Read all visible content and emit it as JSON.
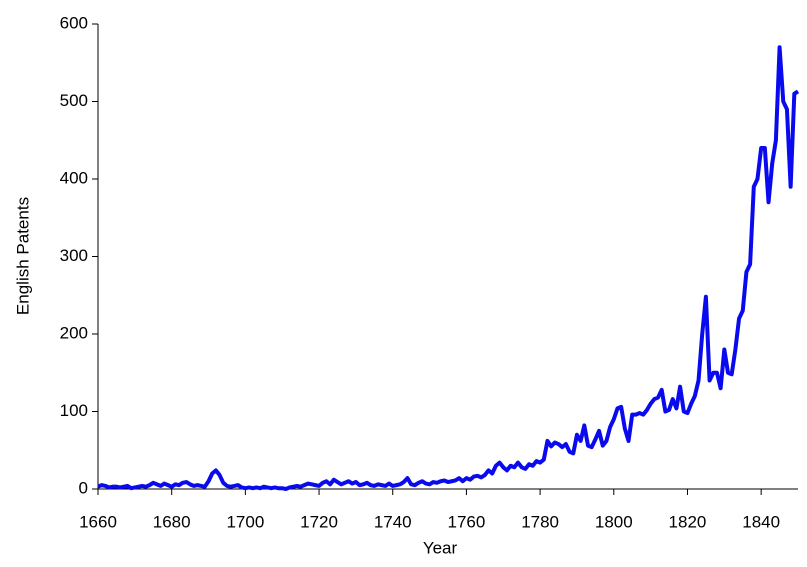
{
  "chart_data": {
    "type": "line",
    "xlabel": "Year",
    "ylabel": "English Patents",
    "x": [
      1660,
      1661,
      1662,
      1663,
      1664,
      1665,
      1666,
      1667,
      1668,
      1669,
      1670,
      1671,
      1672,
      1673,
      1674,
      1675,
      1676,
      1677,
      1678,
      1679,
      1680,
      1681,
      1682,
      1683,
      1684,
      1685,
      1686,
      1687,
      1688,
      1689,
      1690,
      1691,
      1692,
      1693,
      1694,
      1695,
      1696,
      1697,
      1698,
      1699,
      1700,
      1701,
      1702,
      1703,
      1704,
      1705,
      1706,
      1707,
      1708,
      1709,
      1710,
      1711,
      1712,
      1713,
      1714,
      1715,
      1716,
      1717,
      1718,
      1719,
      1720,
      1721,
      1722,
      1723,
      1724,
      1725,
      1726,
      1727,
      1728,
      1729,
      1730,
      1731,
      1732,
      1733,
      1734,
      1735,
      1736,
      1737,
      1738,
      1739,
      1740,
      1741,
      1742,
      1743,
      1744,
      1745,
      1746,
      1747,
      1748,
      1749,
      1750,
      1751,
      1752,
      1753,
      1754,
      1755,
      1756,
      1757,
      1758,
      1759,
      1760,
      1761,
      1762,
      1763,
      1764,
      1765,
      1766,
      1767,
      1768,
      1769,
      1770,
      1771,
      1772,
      1773,
      1774,
      1775,
      1776,
      1777,
      1778,
      1779,
      1780,
      1781,
      1782,
      1783,
      1784,
      1785,
      1786,
      1787,
      1788,
      1789,
      1790,
      1791,
      1792,
      1793,
      1794,
      1795,
      1796,
      1797,
      1798,
      1799,
      1800,
      1801,
      1802,
      1803,
      1804,
      1805,
      1806,
      1807,
      1808,
      1809,
      1810,
      1811,
      1812,
      1813,
      1814,
      1815,
      1816,
      1817,
      1818,
      1819,
      1820,
      1821,
      1822,
      1823,
      1824,
      1825,
      1826,
      1827,
      1828,
      1829,
      1830,
      1831,
      1832,
      1833,
      1834,
      1835,
      1836,
      1837,
      1838,
      1839,
      1840,
      1841,
      1842,
      1843,
      1844,
      1845,
      1846,
      1847,
      1848,
      1849,
      1850
    ],
    "series": [
      {
        "color": "#0a0aee",
        "values": [
          3,
          5,
          4,
          2,
          3,
          3,
          2,
          3,
          4,
          1,
          2,
          3,
          4,
          3,
          5,
          8,
          6,
          4,
          7,
          5,
          3,
          6,
          5,
          8,
          9,
          6,
          4,
          5,
          4,
          3,
          10,
          20,
          24,
          18,
          8,
          4,
          3,
          4,
          5,
          2,
          1,
          2,
          1,
          2,
          1,
          3,
          2,
          1,
          2,
          1,
          1,
          0,
          2,
          3,
          4,
          3,
          5,
          7,
          6,
          5,
          4,
          8,
          10,
          6,
          12,
          9,
          6,
          8,
          10,
          7,
          9,
          5,
          6,
          8,
          5,
          4,
          6,
          5,
          4,
          7,
          4,
          5,
          6,
          9,
          14,
          6,
          5,
          8,
          10,
          7,
          6,
          9,
          8,
          10,
          11,
          9,
          10,
          11,
          14,
          10,
          14,
          12,
          16,
          17,
          15,
          18,
          24,
          20,
          30,
          34,
          28,
          24,
          30,
          28,
          34,
          28,
          26,
          32,
          30,
          36,
          34,
          38,
          62,
          55,
          60,
          58,
          54,
          58,
          48,
          46,
          70,
          62,
          82,
          56,
          54,
          64,
          75,
          56,
          62,
          80,
          90,
          104,
          106,
          78,
          62,
          96,
          96,
          98,
          96,
          102,
          110,
          116,
          118,
          128,
          100,
          102,
          116,
          104,
          132,
          100,
          98,
          110,
          120,
          140,
          200,
          248,
          140,
          150,
          150,
          130,
          180,
          150,
          148,
          180,
          220,
          230,
          280,
          290,
          390,
          400,
          440,
          440,
          370,
          420,
          450,
          570,
          500,
          490,
          390,
          510,
          513
        ]
      }
    ],
    "xlim": [
      1660,
      1850
    ],
    "xticks": [
      1660,
      1680,
      1700,
      1720,
      1740,
      1760,
      1780,
      1800,
      1820,
      1840
    ],
    "ylim": [
      0,
      600
    ],
    "yticks": [
      0,
      100,
      200,
      300,
      400,
      500,
      600
    ]
  }
}
